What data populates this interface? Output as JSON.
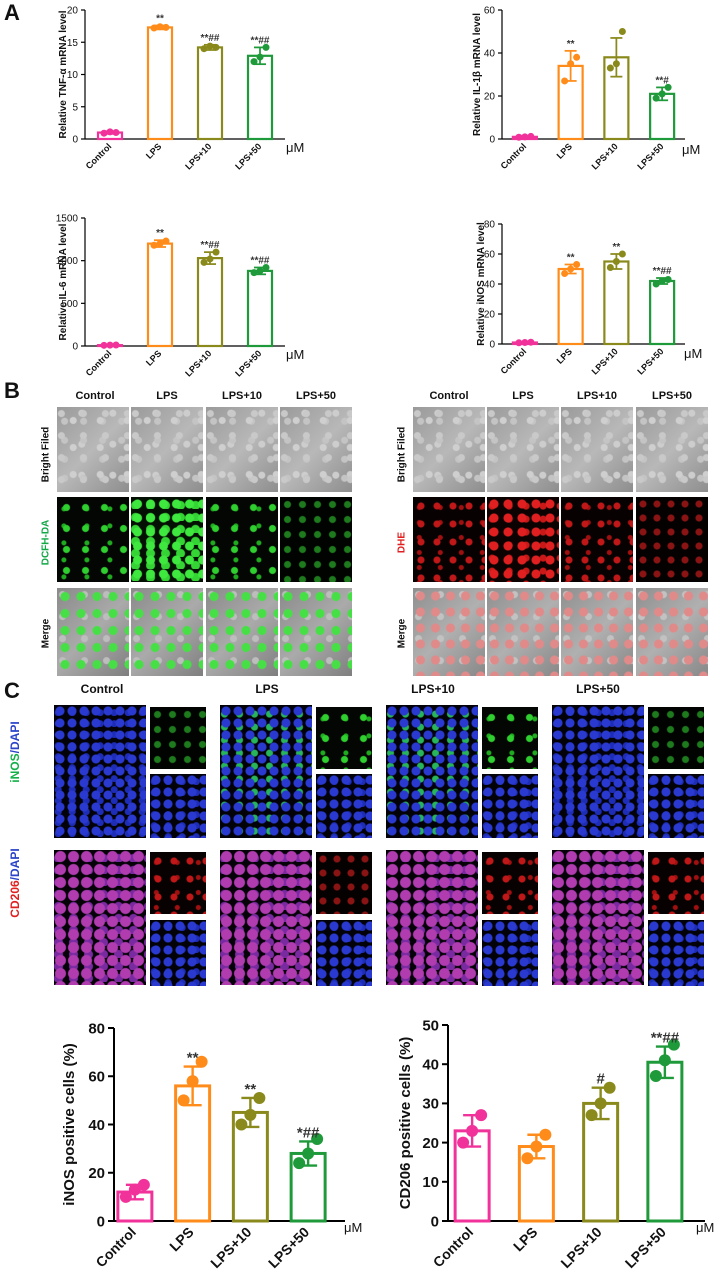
{
  "panels": {
    "a": "A",
    "b": "B",
    "c": "C"
  },
  "unit": "μM",
  "chart_data": [
    {
      "id": "tnf",
      "type": "bar",
      "ylabel": "Relative TNF-α mRNA level",
      "categories": [
        "Control",
        "LPS",
        "LPS+10",
        "LPS+50"
      ],
      "values": [
        1.0,
        17.3,
        14.2,
        12.9
      ],
      "errors": [
        0.2,
        0.3,
        0.4,
        1.3
      ],
      "points": [
        [
          0.9,
          1.1,
          1.0
        ],
        [
          17.2,
          17.4,
          17.3
        ],
        [
          14.0,
          14.4,
          14.2
        ],
        [
          12.0,
          12.7,
          14.2
        ]
      ],
      "annotations": [
        "",
        "**",
        "**##",
        "**##"
      ],
      "ylim": [
        0,
        20
      ],
      "yticks": [
        0,
        5,
        10,
        15,
        20
      ]
    },
    {
      "id": "il1b",
      "type": "bar",
      "ylabel": "Relative IL-1β mRNA level",
      "categories": [
        "Control",
        "LPS",
        "LPS+10",
        "LPS+50"
      ],
      "values": [
        1.0,
        34.0,
        38.0,
        21.0
      ],
      "errors": [
        0.5,
        7.0,
        9.0,
        3.0
      ],
      "points": [
        [
          0.8,
          1.0,
          1.2
        ],
        [
          27.0,
          35.0,
          38.0
        ],
        [
          33.0,
          35.0,
          50.0
        ],
        [
          19.0,
          21.0,
          24.0
        ]
      ],
      "annotations": [
        "",
        "**",
        "",
        "**#"
      ],
      "ylim": [
        0,
        60
      ],
      "yticks": [
        0,
        20,
        40,
        60
      ]
    },
    {
      "id": "il6",
      "type": "bar",
      "ylabel": "Relative IL-6 mRNA level",
      "categories": [
        "Control",
        "LPS",
        "LPS+10",
        "LPS+50"
      ],
      "values": [
        10,
        1200,
        1030,
        880
      ],
      "errors": [
        5,
        40,
        70,
        40
      ],
      "points": [
        [
          8,
          10,
          12
        ],
        [
          1180,
          1200,
          1230
        ],
        [
          980,
          1020,
          1100
        ],
        [
          860,
          880,
          920
        ]
      ],
      "annotations": [
        "",
        "**",
        "**##",
        "**##"
      ],
      "ylim": [
        0,
        1500
      ],
      "yticks": [
        0,
        500,
        1000,
        1500
      ]
    },
    {
      "id": "inos_mrna",
      "type": "bar",
      "ylabel": "Relative iNOS mRNA level",
      "categories": [
        "Control",
        "LPS",
        "LPS+10",
        "LPS+50"
      ],
      "values": [
        1.0,
        50.0,
        55.0,
        42.0
      ],
      "errors": [
        0.5,
        3.0,
        5.0,
        2.0
      ],
      "points": [
        [
          0.8,
          1.0,
          1.2
        ],
        [
          47.0,
          50.0,
          53.0
        ],
        [
          51.0,
          55.0,
          60.0
        ],
        [
          40.0,
          42.0,
          43.0
        ]
      ],
      "annotations": [
        "",
        "**",
        "**",
        "**##"
      ],
      "ylim": [
        0,
        80
      ],
      "yticks": [
        0,
        20,
        40,
        60,
        80
      ]
    },
    {
      "id": "inos_cells",
      "type": "bar",
      "ylabel": "iNOS positive cells (%)",
      "categories": [
        "Control",
        "LPS",
        "LPS+10",
        "LPS+50"
      ],
      "values": [
        12,
        56,
        45,
        28
      ],
      "errors": [
        3,
        8,
        6,
        5
      ],
      "points": [
        [
          10,
          13,
          15
        ],
        [
          50,
          58,
          66
        ],
        [
          40,
          44,
          51
        ],
        [
          24,
          28,
          34
        ]
      ],
      "annotations": [
        "",
        "**",
        "**",
        "*##"
      ],
      "ylim": [
        0,
        80
      ],
      "yticks": [
        0,
        20,
        40,
        60,
        80
      ]
    },
    {
      "id": "cd206_cells",
      "type": "bar",
      "ylabel": "CD206 positive cells (%)",
      "categories": [
        "Control",
        "LPS",
        "LPS+10",
        "LPS+50"
      ],
      "values": [
        23,
        19,
        30,
        40.5
      ],
      "errors": [
        4,
        3,
        4,
        4
      ],
      "points": [
        [
          20,
          23,
          27
        ],
        [
          16,
          19,
          22
        ],
        [
          27,
          30,
          34
        ],
        [
          37,
          41,
          45
        ]
      ],
      "annotations": [
        "",
        "",
        "#",
        "**##"
      ],
      "ylim": [
        0,
        50
      ],
      "yticks": [
        0,
        10,
        20,
        30,
        40,
        50
      ]
    }
  ],
  "colors": [
    "#f0329a",
    "#ff8c1a",
    "#8a8a1c",
    "#1f9a3a"
  ],
  "panel_b": {
    "columns": [
      "Control",
      "LPS",
      "LPS+10",
      "LPS+50"
    ],
    "left_rows": [
      "Bright Filed",
      "DCFH-DA",
      "Merge"
    ],
    "right_rows": [
      "Bright Filed",
      "DHE",
      "Merge"
    ]
  },
  "panel_c": {
    "columns": [
      "Control",
      "LPS",
      "LPS+10",
      "LPS+50"
    ],
    "row1_label_a": "iNOS",
    "row1_label_b": "/DAPI",
    "row2_label_a": "CD206",
    "row2_label_b": "/DAPI"
  }
}
